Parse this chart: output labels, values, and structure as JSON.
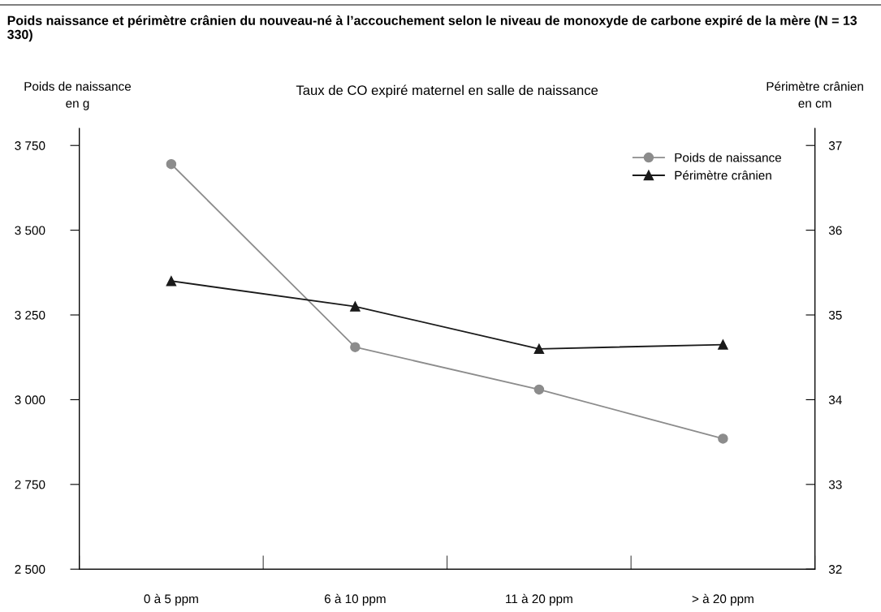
{
  "chart_data": {
    "type": "line",
    "title": "Poids naissance et périmètre crânien du nouveau-né à l’accouchement selon le niveau de monoxyde de carbone expiré de la mère (N = 13 330)",
    "subtitle": "Taux de CO expiré maternel en salle de naissance",
    "ylabel": "Poids de naissance\nen g",
    "y2label": "Périmètre crânien\nen cm",
    "categories": [
      "0 à 5 ppm",
      "6 à 10 ppm",
      "11 à 20 ppm",
      "> à 20 ppm"
    ],
    "series": [
      {
        "name": "Poids de naissance",
        "color": "#8c8c8c",
        "marker": "circle",
        "values": [
          3695,
          3155,
          3030,
          2885
        ]
      },
      {
        "name": "Périmètre crânien",
        "color": "#1a1a1a",
        "marker": "triangle",
        "axis": "y2",
        "values": [
          35.4,
          35.1,
          34.6,
          34.65
        ]
      }
    ],
    "ylim": [
      2500,
      3800
    ],
    "yticks": [
      {
        "value": 2500,
        "label": "2 500"
      },
      {
        "value": 2750,
        "label": "2 750"
      },
      {
        "value": 3000,
        "label": "3 000"
      },
      {
        "value": 3250,
        "label": "3 250"
      },
      {
        "value": 3500,
        "label": "3 500"
      },
      {
        "value": 3750,
        "label": "3 750"
      }
    ],
    "y2lim": [
      32,
      37.2
    ],
    "y2ticks": [
      32,
      33,
      34,
      35,
      36,
      37
    ],
    "grid": false,
    "legend": "top right",
    "line_style": "solid"
  }
}
